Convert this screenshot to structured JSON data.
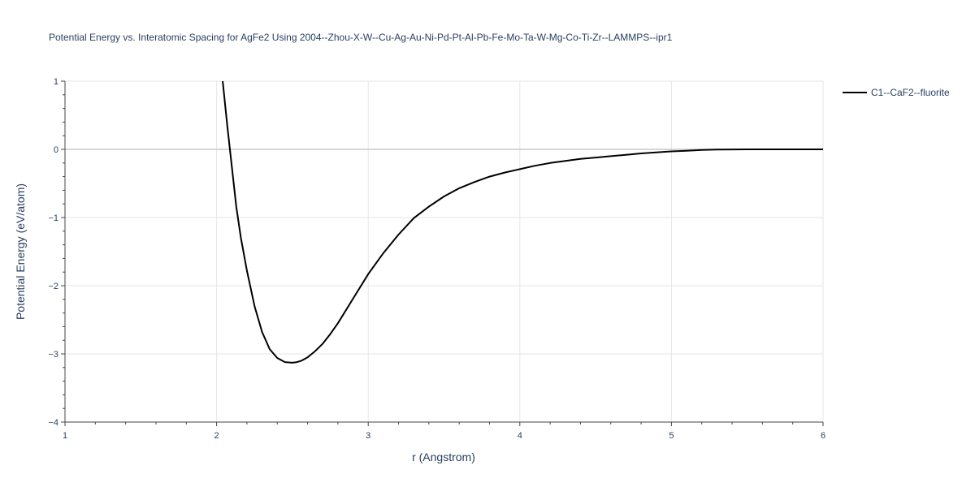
{
  "chart_data": {
    "type": "line",
    "title": "Potential Energy vs. Interatomic Spacing for AgFe2 Using 2004--Zhou-X-W--Cu-Ag-Au-Ni-Pd-Pt-Al-Pb-Fe-Mo-Ta-W-Mg-Co-Ti-Zr--LAMMPS--ipr1",
    "xlabel": "r (Angstrom)",
    "ylabel": "Potential Energy (eV/atom)",
    "xlim": [
      1,
      6
    ],
    "ylim": [
      -4,
      1
    ],
    "x_ticks": [
      1,
      2,
      3,
      4,
      5,
      6
    ],
    "x_tick_labels": [
      "1",
      "2",
      "3",
      "4",
      "5",
      "6"
    ],
    "y_ticks": [
      1,
      0,
      -1,
      -2,
      -3,
      -4
    ],
    "y_tick_labels": [
      "1",
      "0",
      "−1",
      "−2",
      "−3",
      "−4"
    ],
    "grid": true,
    "legend_position": "top-right",
    "colors": {
      "line": "#000000",
      "grid": "#e5e5e5",
      "zero_line": "#c8c8c8",
      "text": "#2a3f5f"
    },
    "series": [
      {
        "name": "C1--CaF2--fluorite",
        "x": [
          2.04,
          2.07,
          2.1,
          2.13,
          2.16,
          2.2,
          2.25,
          2.3,
          2.35,
          2.4,
          2.45,
          2.5,
          2.53,
          2.56,
          2.6,
          2.65,
          2.7,
          2.75,
          2.8,
          2.9,
          3.0,
          3.1,
          3.2,
          3.3,
          3.4,
          3.5,
          3.6,
          3.7,
          3.8,
          3.9,
          4.0,
          4.1,
          4.2,
          4.3,
          4.4,
          4.5,
          4.6,
          4.7,
          4.8,
          4.9,
          5.0,
          5.1,
          5.2,
          5.3,
          5.5,
          5.7,
          6.0
        ],
        "y": [
          1.0,
          0.35,
          -0.25,
          -0.85,
          -1.3,
          -1.78,
          -2.3,
          -2.68,
          -2.93,
          -3.06,
          -3.12,
          -3.13,
          -3.12,
          -3.1,
          -3.05,
          -2.96,
          -2.85,
          -2.71,
          -2.55,
          -2.19,
          -1.83,
          -1.52,
          -1.25,
          -1.01,
          -0.84,
          -0.69,
          -0.57,
          -0.48,
          -0.4,
          -0.34,
          -0.29,
          -0.24,
          -0.2,
          -0.17,
          -0.14,
          -0.12,
          -0.1,
          -0.08,
          -0.06,
          -0.045,
          -0.03,
          -0.02,
          -0.01,
          -0.003,
          0.0,
          0.0,
          0.0
        ]
      }
    ]
  }
}
